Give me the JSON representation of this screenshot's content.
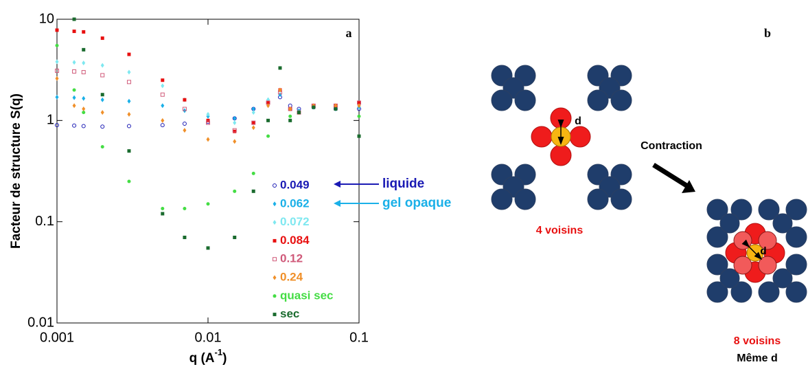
{
  "chart_data": {
    "type": "scatter",
    "panel_label": "a",
    "y_label": "Facteur de structure S(q)",
    "x_label": [
      "q (A",
      "-1",
      ")"
    ],
    "x_log": true,
    "y_log": true,
    "xlim": [
      0.001,
      0.1
    ],
    "ylim": [
      0.01,
      10
    ],
    "xticks": [
      0.001,
      0.01,
      0.1
    ],
    "yticks": [
      0.01,
      0.1,
      1,
      10
    ],
    "x": [
      0.001,
      0.0013,
      0.0015,
      0.002,
      0.003,
      0.005,
      0.007,
      0.01,
      0.015,
      0.02,
      0.025,
      0.03,
      0.035,
      0.04,
      0.05,
      0.07,
      0.1
    ],
    "series": [
      {
        "name": "0.049",
        "color": "#1a1ab4",
        "marker": "open-circle",
        "values": [
          0.9,
          0.89,
          0.88,
          0.87,
          0.88,
          0.9,
          0.93,
          0.97,
          1.05,
          1.3,
          1.5,
          1.7,
          1.4,
          1.3,
          1.35,
          1.3,
          1.3
        ]
      },
      {
        "name": "0.062",
        "color": "#1ab0e8",
        "marker": "diamond",
        "values": [
          1.7,
          1.68,
          1.65,
          1.6,
          1.55,
          1.4,
          1.25,
          1.1,
          1.05,
          1.3,
          1.6,
          1.8,
          1.3,
          1.25,
          1.35,
          1.3,
          1.35
        ]
      },
      {
        "name": "0.072",
        "color": "#7fe8f0",
        "marker": "diamond",
        "values": [
          3.8,
          3.75,
          3.7,
          3.5,
          3.0,
          2.2,
          1.6,
          1.15,
          0.95,
          1.2,
          1.6,
          2.0,
          1.3,
          1.2,
          1.35,
          1.3,
          1.4
        ]
      },
      {
        "name": "0.084",
        "color": "#e81010",
        "marker": "square",
        "values": [
          7.8,
          7.6,
          7.5,
          6.5,
          4.5,
          2.5,
          1.6,
          1.0,
          0.78,
          0.95,
          1.5,
          2.0,
          1.3,
          1.2,
          1.4,
          1.4,
          1.5
        ]
      },
      {
        "name": "0.12",
        "color": "#d05a7a",
        "marker": "open-square",
        "values": [
          3.1,
          3.05,
          3.0,
          2.8,
          2.4,
          1.8,
          1.3,
          0.95,
          0.8,
          0.95,
          1.5,
          1.9,
          1.3,
          1.2,
          1.4,
          1.4,
          1.5
        ]
      },
      {
        "name": "0.24",
        "color": "#f0902a",
        "marker": "diamond",
        "values": [
          2.6,
          1.4,
          1.3,
          1.2,
          1.15,
          1.0,
          0.8,
          0.65,
          0.62,
          0.85,
          1.4,
          2.0,
          1.3,
          1.2,
          1.4,
          1.4,
          1.4
        ]
      },
      {
        "name": "quasi sec",
        "color": "#44dd44",
        "marker": "circle",
        "values": [
          5.5,
          2.0,
          1.2,
          0.55,
          0.25,
          0.135,
          0.135,
          0.15,
          0.2,
          0.3,
          0.7,
          3.3,
          1.1,
          1.2,
          1.35,
          1.3,
          1.1
        ]
      },
      {
        "name": "sec",
        "color": "#1a6b2e",
        "marker": "square",
        "values": [
          null,
          10,
          5.0,
          1.8,
          0.5,
          0.12,
          0.07,
          0.055,
          0.07,
          0.2,
          1.0,
          3.3,
          1.0,
          1.2,
          1.35,
          1.3,
          0.7
        ]
      }
    ],
    "annotations": [
      {
        "text": "liquide",
        "color": "#1a1ab4"
      },
      {
        "text": "gel opaque",
        "color": "#1ab0e8"
      }
    ]
  },
  "diagram": {
    "panel_label": "b",
    "distance_label": "d",
    "arrow_label": "Contraction",
    "left_caption": "4 voisins",
    "right_caption": [
      "8 voisins",
      "Même d"
    ]
  }
}
